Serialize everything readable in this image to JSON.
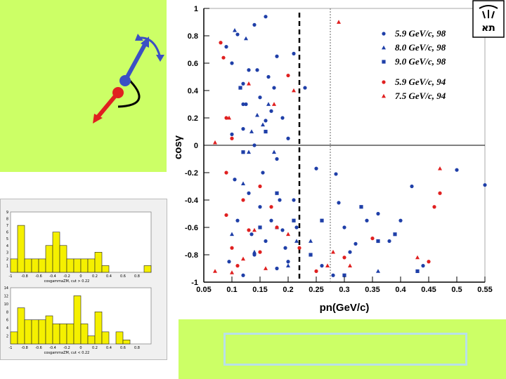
{
  "colors": {
    "green_bg": "#ccff66",
    "blue_marker": "#1f3fa8",
    "red_marker": "#e02020",
    "hist_fill": "#f5f000"
  },
  "logo": {
    "label": "Tel Aviv University logo",
    "letters": "תא"
  },
  "chart_data": [
    {
      "type": "scatter",
      "title": "",
      "xlabel": "pn(GeV/c)",
      "ylabel": "cosγ",
      "xlim": [
        0.05,
        0.55
      ],
      "ylim": [
        -1,
        1
      ],
      "x_ticks": [
        "0.05",
        "0.1",
        "0.15",
        "0.2",
        "0.25",
        "0.3",
        "0.35",
        "0.4",
        "0.45",
        "0.5",
        "0.55"
      ],
      "y_ticks": [
        "1",
        "0.8",
        "0.6",
        "0.4",
        "0.2",
        "0",
        "-0.2",
        "-0.4",
        "-0.6",
        "-0.8",
        "-1"
      ],
      "reference_lines": {
        "dashed_bold_x": 0.22,
        "dotted_x": 0.275,
        "solid_y": 0
      },
      "legend_position": "top-right",
      "legend_group1": [
        "5.9 GeV/c, 98",
        "8.0 GeV/c, 98",
        "9.0 GeV/c, 98"
      ],
      "legend_group2": [
        "5.9 GeV/c, 94",
        "7.5 GeV/c, 94"
      ],
      "series": [
        {
          "name": "5.9 GeV/c, 98",
          "color": "blue",
          "marker": "circle",
          "points": [
            [
              0.09,
              0.72
            ],
            [
              0.1,
              0.6
            ],
            [
              0.11,
              0.81
            ],
            [
              0.12,
              0.45
            ],
            [
              0.125,
              0.3
            ],
            [
              0.13,
              0.55
            ],
            [
              0.14,
              0.88
            ],
            [
              0.15,
              0.35
            ],
            [
              0.16,
              0.94
            ],
            [
              0.17,
              0.25
            ],
            [
              0.18,
              0.65
            ],
            [
              0.19,
              0.2
            ],
            [
              0.21,
              0.67
            ],
            [
              0.23,
              0.42
            ],
            [
              0.1,
              0.08
            ],
            [
              0.12,
              0.12
            ],
            [
              0.14,
              0.0
            ],
            [
              0.16,
              0.18
            ],
            [
              0.18,
              -0.1
            ],
            [
              0.2,
              0.05
            ],
            [
              0.105,
              -0.25
            ],
            [
              0.13,
              -0.35
            ],
            [
              0.15,
              -0.45
            ],
            [
              0.17,
              -0.55
            ],
            [
              0.19,
              -0.62
            ],
            [
              0.21,
              -0.4
            ],
            [
              0.25,
              -0.17
            ],
            [
              0.285,
              -0.21
            ],
            [
              0.29,
              -0.42
            ],
            [
              0.3,
              -0.6
            ],
            [
              0.32,
              -0.72
            ],
            [
              0.36,
              -0.5
            ],
            [
              0.38,
              -0.7
            ],
            [
              0.4,
              -0.55
            ],
            [
              0.42,
              -0.3
            ],
            [
              0.44,
              -0.88
            ],
            [
              0.5,
              -0.18
            ],
            [
              0.55,
              -0.29
            ],
            [
              0.095,
              -0.85
            ],
            [
              0.12,
              -0.95
            ],
            [
              0.14,
              -0.8
            ],
            [
              0.16,
              -0.7
            ],
            [
              0.18,
              -0.9
            ],
            [
              0.2,
              -0.85
            ],
            [
              0.26,
              -0.88
            ],
            [
              0.28,
              -0.95
            ],
            [
              0.31,
              -0.78
            ],
            [
              0.34,
              -0.55
            ],
            [
              0.11,
              -0.55
            ],
            [
              0.135,
              -0.65
            ],
            [
              0.155,
              -0.2
            ],
            [
              0.175,
              0.42
            ],
            [
              0.12,
              0.3
            ],
            [
              0.145,
              0.55
            ],
            [
              0.165,
              0.5
            ],
            [
              0.185,
              -0.4
            ],
            [
              0.215,
              -0.6
            ],
            [
              0.195,
              -0.75
            ]
          ]
        },
        {
          "name": "8.0 GeV/c, 98",
          "color": "blue",
          "marker": "triangle",
          "points": [
            [
              0.105,
              0.84
            ],
            [
              0.125,
              0.78
            ],
            [
              0.145,
              0.22
            ],
            [
              0.155,
              0.15
            ],
            [
              0.165,
              0.3
            ],
            [
              0.175,
              -0.05
            ],
            [
              0.13,
              -0.05
            ],
            [
              0.1,
              -0.65
            ],
            [
              0.14,
              -0.78
            ],
            [
              0.18,
              -0.6
            ],
            [
              0.215,
              -0.7
            ],
            [
              0.24,
              -0.7
            ],
            [
              0.2,
              -0.88
            ],
            [
              0.36,
              -0.92
            ],
            [
              0.12,
              -0.28
            ],
            [
              0.135,
              0.1
            ]
          ]
        },
        {
          "name": "9.0 GeV/c, 98",
          "color": "blue",
          "marker": "square",
          "points": [
            [
              0.115,
              0.42
            ],
            [
              0.16,
              0.1
            ],
            [
              0.18,
              -0.35
            ],
            [
              0.21,
              -0.55
            ],
            [
              0.24,
              -0.8
            ],
            [
              0.26,
              -0.55
            ],
            [
              0.33,
              -0.45
            ],
            [
              0.36,
              -0.7
            ],
            [
              0.39,
              -0.65
            ],
            [
              0.43,
              -0.92
            ],
            [
              0.3,
              -0.95
            ],
            [
              0.15,
              -0.6
            ],
            [
              0.12,
              -0.05
            ]
          ]
        },
        {
          "name": "5.9 GeV/c, 94",
          "color": "red",
          "marker": "circle",
          "points": [
            [
              0.08,
              0.75
            ],
            [
              0.085,
              0.64
            ],
            [
              0.09,
              0.2
            ],
            [
              0.1,
              0.05
            ],
            [
              0.09,
              -0.51
            ],
            [
              0.1,
              -0.75
            ],
            [
              0.11,
              -0.88
            ],
            [
              0.13,
              -0.62
            ],
            [
              0.15,
              -0.78
            ],
            [
              0.17,
              -0.45
            ],
            [
              0.18,
              -0.6
            ],
            [
              0.2,
              0.51
            ],
            [
              0.22,
              -0.75
            ],
            [
              0.25,
              -0.92
            ],
            [
              0.3,
              -0.82
            ],
            [
              0.35,
              -0.68
            ],
            [
              0.46,
              -0.45
            ],
            [
              0.45,
              -0.85
            ],
            [
              0.47,
              -0.35
            ],
            [
              0.09,
              -0.2
            ],
            [
              0.12,
              -0.4
            ],
            [
              0.15,
              -0.3
            ]
          ]
        },
        {
          "name": "7.5 GeV/c, 94",
          "color": "red",
          "marker": "triangle",
          "points": [
            [
              0.07,
              0.02
            ],
            [
              0.095,
              0.2
            ],
            [
              0.13,
              0.45
            ],
            [
              0.175,
              0.3
            ],
            [
              0.21,
              0.4
            ],
            [
              0.29,
              0.9
            ],
            [
              0.47,
              -0.17
            ],
            [
              0.07,
              -0.92
            ],
            [
              0.1,
              -0.93
            ],
            [
              0.12,
              -0.83
            ],
            [
              0.14,
              -0.62
            ],
            [
              0.16,
              -0.9
            ],
            [
              0.2,
              -0.65
            ],
            [
              0.27,
              -0.88
            ],
            [
              0.31,
              -0.88
            ],
            [
              0.28,
              -0.78
            ],
            [
              0.43,
              -0.82
            ]
          ]
        }
      ]
    },
    {
      "type": "bar",
      "title": "cosgammaZM, cut > 0.22",
      "xlim": [
        -1,
        1
      ],
      "ylim": [
        0,
        9
      ],
      "x_ticks": [
        "-1",
        "-0.8",
        "-0.6",
        "-0.4",
        "-0.2",
        "0",
        "0.2",
        "0.4",
        "0.6",
        "0.8"
      ],
      "y_ticks": [
        "1",
        "2",
        "3",
        "4",
        "5",
        "6",
        "7",
        "8",
        "9"
      ],
      "bin_edges": [
        -1,
        -0.9,
        -0.8,
        -0.7,
        -0.6,
        -0.5,
        -0.4,
        -0.3,
        -0.2,
        -0.1,
        0,
        0.1,
        0.2,
        0.3,
        0.4,
        0.5,
        0.6,
        0.7,
        0.8,
        0.9,
        1
      ],
      "values": [
        2,
        7,
        2,
        2,
        2,
        4,
        6,
        4,
        2,
        2,
        2,
        2,
        3,
        1,
        0,
        0,
        0,
        0,
        0,
        1
      ]
    },
    {
      "type": "bar",
      "title": "cosgammaZM, cut < 0.22",
      "xlim": [
        -1,
        1
      ],
      "ylim": [
        0,
        14
      ],
      "x_ticks": [
        "-1",
        "-0.8",
        "-0.6",
        "-0.4",
        "-0.2",
        "0",
        "0.2",
        "0.4",
        "0.6",
        "0.8"
      ],
      "y_ticks": [
        "2",
        "4",
        "6",
        "8",
        "10",
        "12",
        "14"
      ],
      "bin_edges": [
        -1,
        -0.9,
        -0.8,
        -0.7,
        -0.6,
        -0.5,
        -0.4,
        -0.3,
        -0.2,
        -0.1,
        0,
        0.1,
        0.2,
        0.3,
        0.4,
        0.5,
        0.6,
        0.7,
        0.8,
        0.9,
        1
      ],
      "values": [
        3,
        9,
        6,
        6,
        6,
        7,
        5,
        5,
        5,
        12,
        5,
        2,
        8,
        3,
        0,
        3,
        1,
        0,
        0,
        0
      ]
    }
  ]
}
